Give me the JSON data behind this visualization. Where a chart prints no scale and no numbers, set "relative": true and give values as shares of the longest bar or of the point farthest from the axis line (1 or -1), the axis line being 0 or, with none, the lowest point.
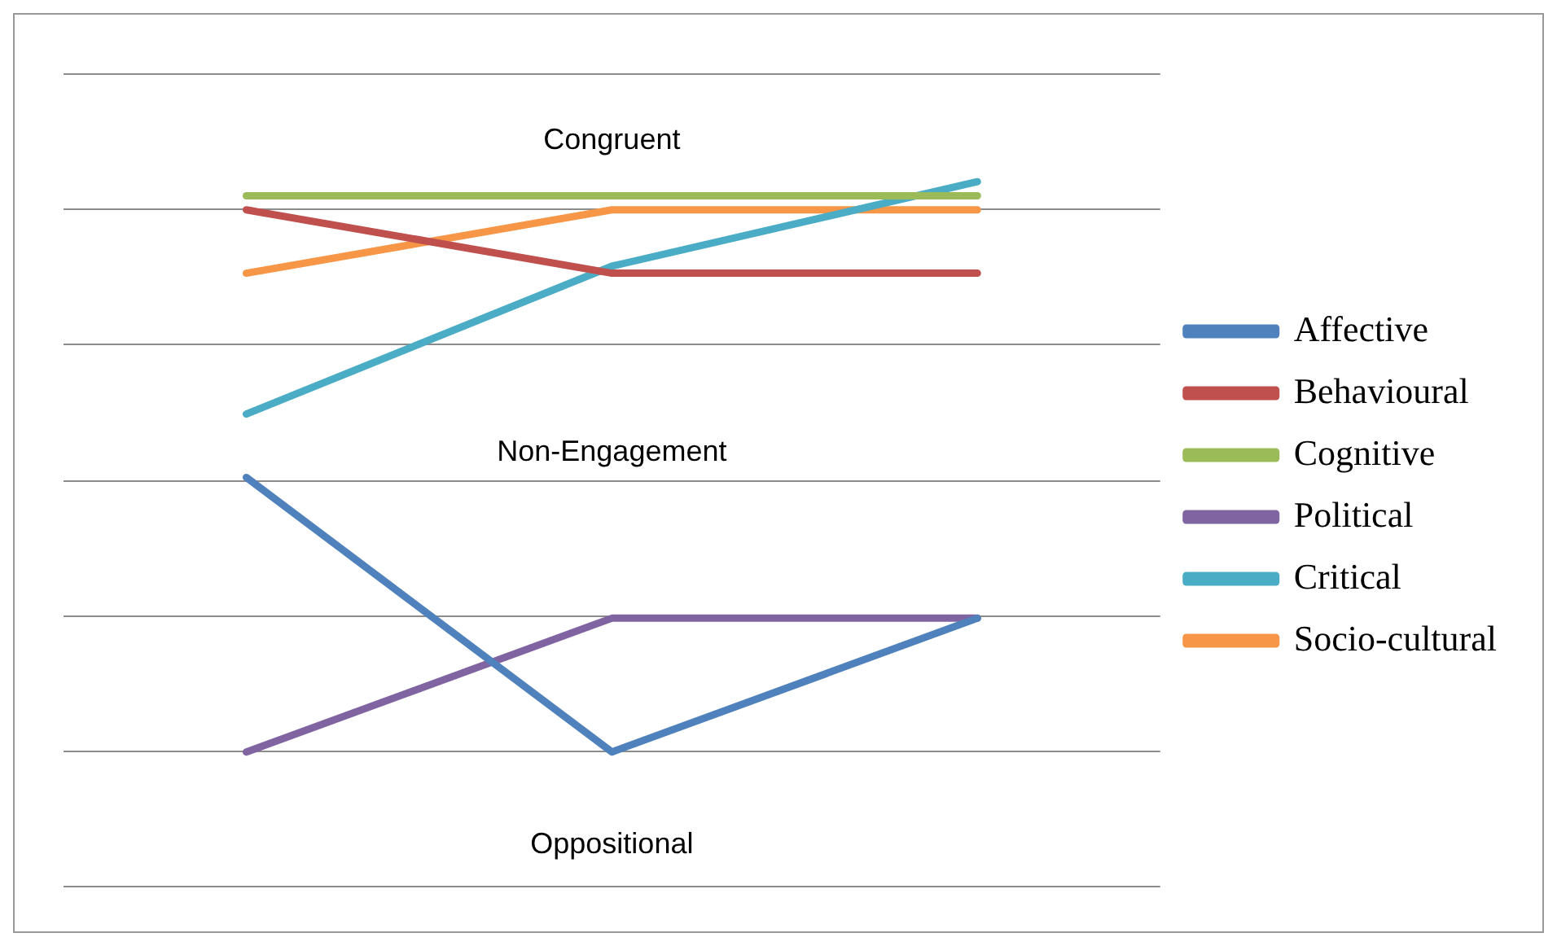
{
  "chart_data": {
    "type": "line",
    "relative": true,
    "categories": [
      null,
      null,
      null
    ],
    "grid": true,
    "legend": "right",
    "marker": "none",
    "line_style": "solid",
    "annotations": [
      "Congruent",
      "Non-Engagement",
      "Oppositional"
    ],
    "series": [
      {
        "name": "Affective",
        "color": "#4f81bd",
        "values": [
          0.58,
          0.19,
          0.38
        ]
      },
      {
        "name": "Behavioural",
        "color": "#c0504d",
        "values": [
          0.96,
          0.87,
          0.87
        ]
      },
      {
        "name": "Cognitive",
        "color": "#9bbb59",
        "values": [
          0.98,
          0.98,
          0.98
        ]
      },
      {
        "name": "Political",
        "color": "#8064a2",
        "values": [
          0.19,
          0.38,
          0.38
        ]
      },
      {
        "name": "Critical",
        "color": "#4bacc6",
        "values": [
          0.67,
          0.88,
          1
        ]
      },
      {
        "name": "Socio-cultural",
        "color": "#f79646",
        "values": [
          0.87,
          0.96,
          0.96
        ]
      }
    ]
  }
}
